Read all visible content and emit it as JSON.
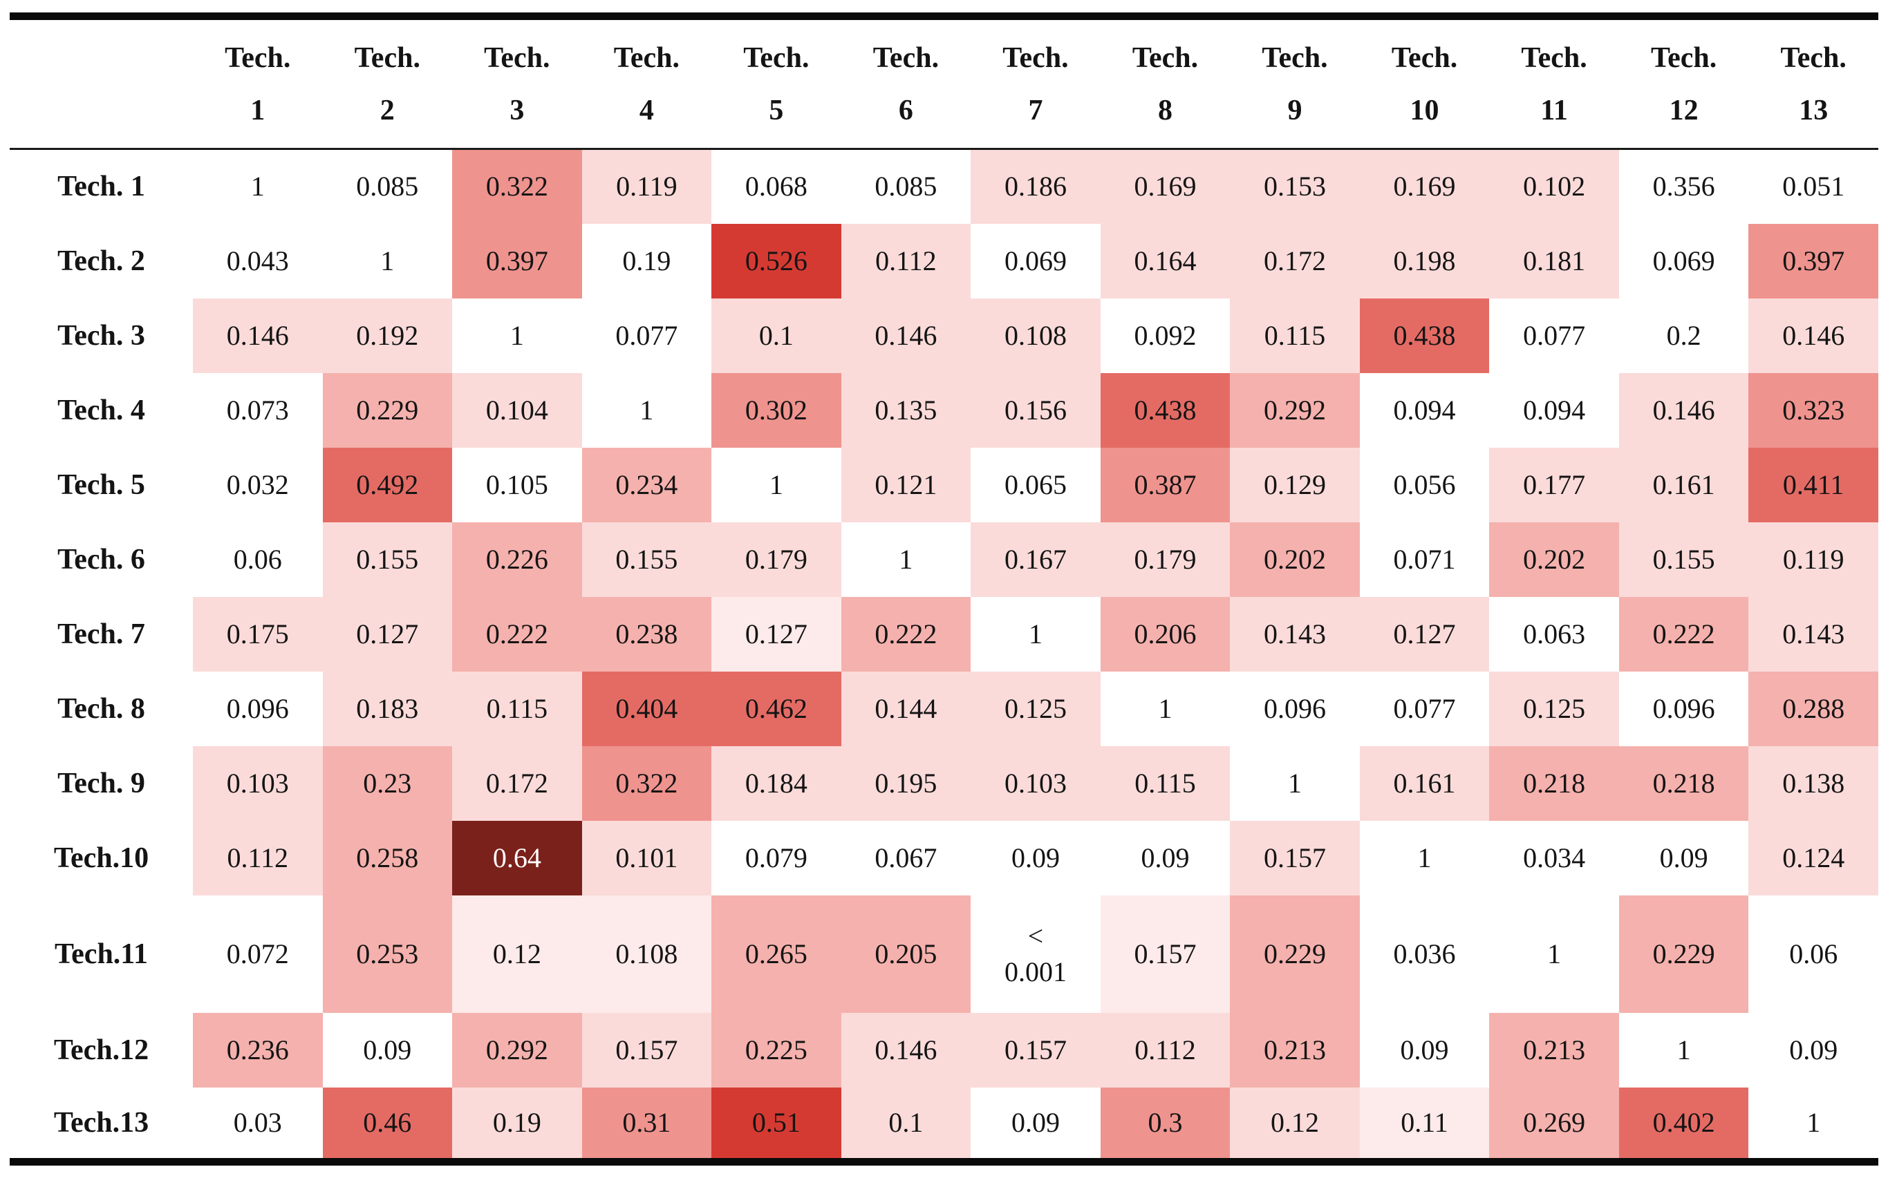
{
  "chart_data": {
    "type": "heatmap",
    "title": "",
    "header_prefix": "Tech.",
    "column_numbers": [
      "1",
      "2",
      "3",
      "4",
      "5",
      "6",
      "7",
      "8",
      "9",
      "10",
      "11",
      "12",
      "13"
    ],
    "row_labels": [
      "Tech. 1",
      "Tech. 2",
      "Tech. 3",
      "Tech. 4",
      "Tech. 5",
      "Tech. 6",
      "Tech. 7",
      "Tech. 8",
      "Tech. 9",
      "Tech.10",
      "Tech.11",
      "Tech.12",
      "Tech.13"
    ],
    "cell_values": [
      [
        "1",
        "0.085",
        "0.322",
        "0.119",
        "0.068",
        "0.085",
        "0.186",
        "0.169",
        "0.153",
        "0.169",
        "0.102",
        "0.356",
        "0.051"
      ],
      [
        "0.043",
        "1",
        "0.397",
        "0.19",
        "0.526",
        "0.112",
        "0.069",
        "0.164",
        "0.172",
        "0.198",
        "0.181",
        "0.069",
        "0.397"
      ],
      [
        "0.146",
        "0.192",
        "1",
        "0.077",
        "0.1",
        "0.146",
        "0.108",
        "0.092",
        "0.115",
        "0.438",
        "0.077",
        "0.2",
        "0.146"
      ],
      [
        "0.073",
        "0.229",
        "0.104",
        "1",
        "0.302",
        "0.135",
        "0.156",
        "0.438",
        "0.292",
        "0.094",
        "0.094",
        "0.146",
        "0.323"
      ],
      [
        "0.032",
        "0.492",
        "0.105",
        "0.234",
        "1",
        "0.121",
        "0.065",
        "0.387",
        "0.129",
        "0.056",
        "0.177",
        "0.161",
        "0.411"
      ],
      [
        "0.06",
        "0.155",
        "0.226",
        "0.155",
        "0.179",
        "1",
        "0.167",
        "0.179",
        "0.202",
        "0.071",
        "0.202",
        "0.155",
        "0.119"
      ],
      [
        "0.175",
        "0.127",
        "0.222",
        "0.238",
        "0.127",
        "0.222",
        "1",
        "0.206",
        "0.143",
        "0.127",
        "0.063",
        "0.222",
        "0.143"
      ],
      [
        "0.096",
        "0.183",
        "0.115",
        "0.404",
        "0.462",
        "0.144",
        "0.125",
        "1",
        "0.096",
        "0.077",
        "0.125",
        "0.096",
        "0.288"
      ],
      [
        "0.103",
        "0.23",
        "0.172",
        "0.322",
        "0.184",
        "0.195",
        "0.103",
        "0.115",
        "1",
        "0.161",
        "0.218",
        "0.218",
        "0.138"
      ],
      [
        "0.112",
        "0.258",
        "0.64",
        "0.101",
        "0.079",
        "0.067",
        "0.09",
        "0.09",
        "0.157",
        "1",
        "0.034",
        "0.09",
        "0.124"
      ],
      [
        "0.072",
        "0.253",
        "0.12",
        "0.108",
        "0.265",
        "0.205",
        "<\n0.001",
        "0.157",
        "0.229",
        "0.036",
        "1",
        "0.229",
        "0.06"
      ],
      [
        "0.236",
        "0.09",
        "0.292",
        "0.157",
        "0.225",
        "0.146",
        "0.157",
        "0.112",
        "0.213",
        "0.09",
        "0.213",
        "1",
        "0.09"
      ],
      [
        "0.03",
        "0.46",
        "0.19",
        "0.31",
        "0.51",
        "0.1",
        "0.09",
        "0.3",
        "0.12",
        "0.11",
        "0.269",
        "0.402",
        "1"
      ]
    ],
    "cell_color_levels": [
      [
        0,
        0,
        4,
        2,
        0,
        0,
        2,
        2,
        2,
        2,
        2,
        0,
        0
      ],
      [
        0,
        0,
        4,
        0,
        6,
        2,
        0,
        2,
        2,
        2,
        2,
        0,
        4
      ],
      [
        2,
        2,
        0,
        0,
        2,
        2,
        2,
        0,
        2,
        5,
        0,
        0,
        2
      ],
      [
        0,
        3,
        2,
        0,
        4,
        2,
        2,
        5,
        3,
        0,
        0,
        2,
        4
      ],
      [
        0,
        5,
        0,
        3,
        0,
        2,
        0,
        4,
        2,
        0,
        2,
        2,
        5
      ],
      [
        0,
        2,
        3,
        2,
        2,
        0,
        2,
        2,
        3,
        0,
        3,
        2,
        2
      ],
      [
        2,
        2,
        3,
        3,
        1,
        3,
        0,
        3,
        2,
        2,
        0,
        3,
        2
      ],
      [
        0,
        2,
        2,
        5,
        5,
        2,
        2,
        0,
        0,
        0,
        2,
        0,
        3
      ],
      [
        2,
        3,
        2,
        4,
        2,
        2,
        2,
        2,
        0,
        2,
        3,
        3,
        2
      ],
      [
        2,
        3,
        7,
        2,
        0,
        0,
        0,
        0,
        2,
        0,
        0,
        0,
        2
      ],
      [
        0,
        3,
        1,
        1,
        3,
        3,
        0,
        1,
        3,
        0,
        0,
        3,
        0
      ],
      [
        3,
        0,
        3,
        2,
        3,
        2,
        2,
        2,
        3,
        0,
        3,
        0,
        0
      ],
      [
        0,
        5,
        2,
        4,
        6,
        2,
        0,
        4,
        2,
        1,
        3,
        5,
        0
      ]
    ],
    "palette": [
      "#ffffff",
      "#fdeaea",
      "#fadbda",
      "#f5b1ad",
      "#ef938e",
      "#e46b64",
      "#d53a32",
      "#7b211b"
    ],
    "text_color": "#141414",
    "inverse_text_color": "#ffffff"
  }
}
